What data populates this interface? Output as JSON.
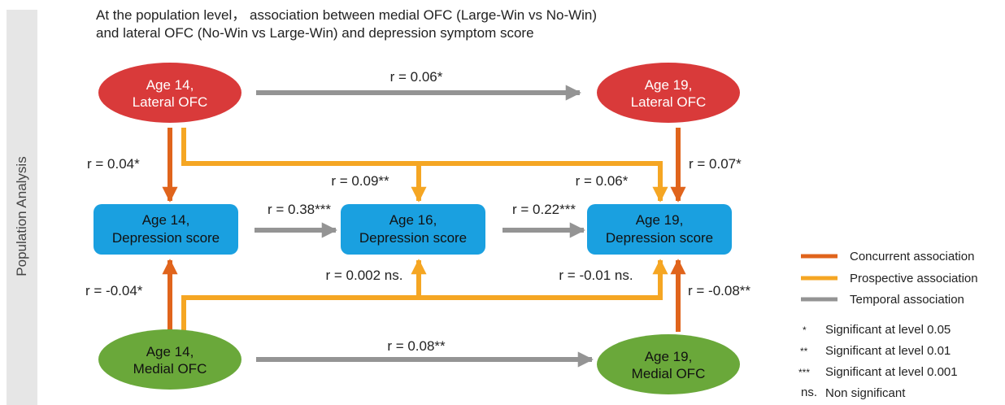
{
  "title": {
    "line1": "At the population level， association between medial OFC (Large-Win vs No-Win)",
    "line2": "and lateral OFC (No-Win vs Large-Win) and depression symptom score"
  },
  "side_label": "Population Analysis",
  "colors": {
    "lateral_ofc": "#d93a3a",
    "medial_ofc": "#6aa83a",
    "depression": "#1aa0e0",
    "concurrent": "#e0641c",
    "prospective": "#f5a623",
    "temporal": "#949494"
  },
  "nodes": {
    "lateral14": {
      "line1": "Age 14,",
      "line2": "Lateral OFC"
    },
    "lateral19": {
      "line1": "Age 19,",
      "line2": "Lateral OFC"
    },
    "dep14": {
      "line1": "Age 14,",
      "line2": "Depression score"
    },
    "dep16": {
      "line1": "Age 16,",
      "line2": "Depression score"
    },
    "dep19": {
      "line1": "Age 19,",
      "line2": "Depression score"
    },
    "medial14": {
      "line1": "Age 14,",
      "line2": "Medial OFC"
    },
    "medial19": {
      "line1": "Age 19,",
      "line2": "Medial OFC"
    }
  },
  "edges": {
    "lateral14_lateral19": "r = 0.06*",
    "lateral14_dep14": "r = 0.04*",
    "lateral14_dep16": "r = 0.09**",
    "lateral14_dep19": "r = 0.06*",
    "lateral19_dep19": "r = 0.07*",
    "dep14_dep16": "r = 0.38***",
    "dep16_dep19": "r = 0.22***",
    "medial14_dep14": "r = -0.04*",
    "medial14_dep16": "r = 0.002 ns.",
    "medial14_dep19": "r = -0.01 ns.",
    "medial19_dep19": "r = -0.08**",
    "medial14_medial19": "r = 0.08**"
  },
  "legend": {
    "concurrent": "Concurrent association",
    "prospective": "Prospective association",
    "temporal": "Temporal association",
    "sig05_mark": "*",
    "sig05": "Significant at level 0.05",
    "sig01_mark": "**",
    "sig01": "Significant at level 0.01",
    "sig001_mark": "***",
    "sig001": "Significant at level 0.001",
    "ns_mark": "ns.",
    "ns": "Non significant"
  }
}
